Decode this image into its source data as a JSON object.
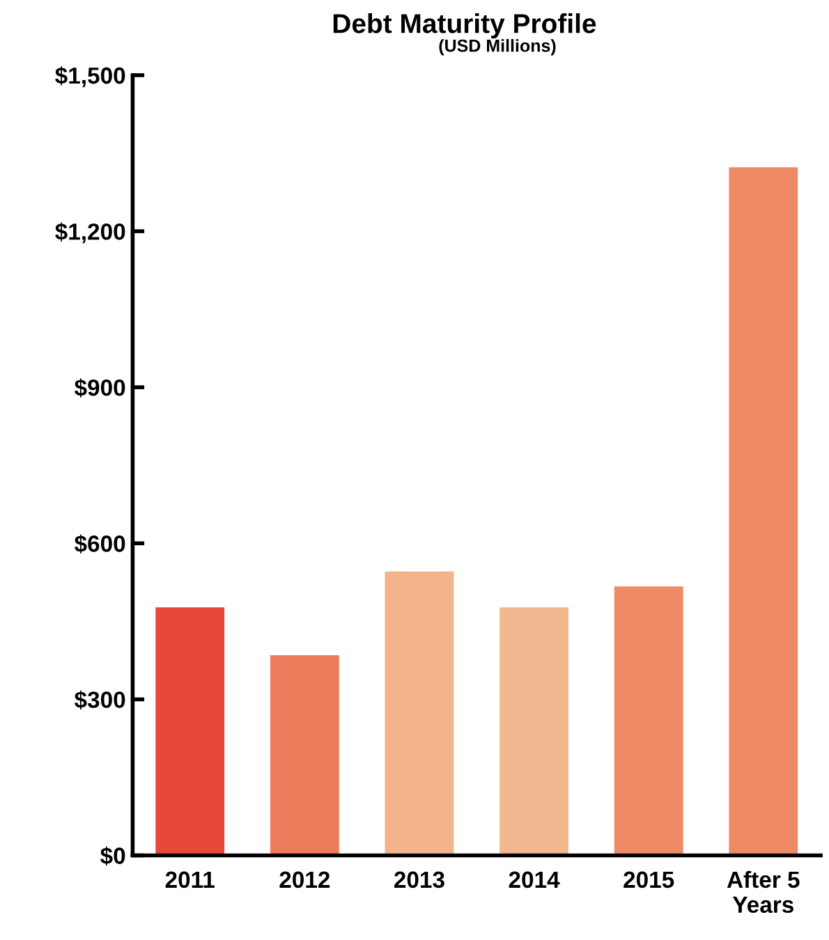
{
  "chart_data": {
    "type": "bar",
    "title": "Debt Maturity Profile",
    "subtitle": "(USD Millions)",
    "categories": [
      "2011",
      "2012",
      "2013",
      "2014",
      "2015",
      "After 5\nYears"
    ],
    "values": [
      477,
      385,
      546,
      477,
      517,
      1323
    ],
    "colors": [
      "#e8483a",
      "#ec7c5c",
      "#f3b48c",
      "#f2b890",
      "#ee8a66",
      "#ee8a66"
    ],
    "ylim": [
      0,
      1500
    ],
    "yticks": [
      {
        "value": 0,
        "label": "$0"
      },
      {
        "value": 300,
        "label": "$300"
      },
      {
        "value": 600,
        "label": "$600"
      },
      {
        "value": 900,
        "label": "$900"
      },
      {
        "value": 1200,
        "label": "$1,200"
      },
      {
        "value": 1500,
        "label": "$1,500"
      }
    ],
    "grid": false
  }
}
